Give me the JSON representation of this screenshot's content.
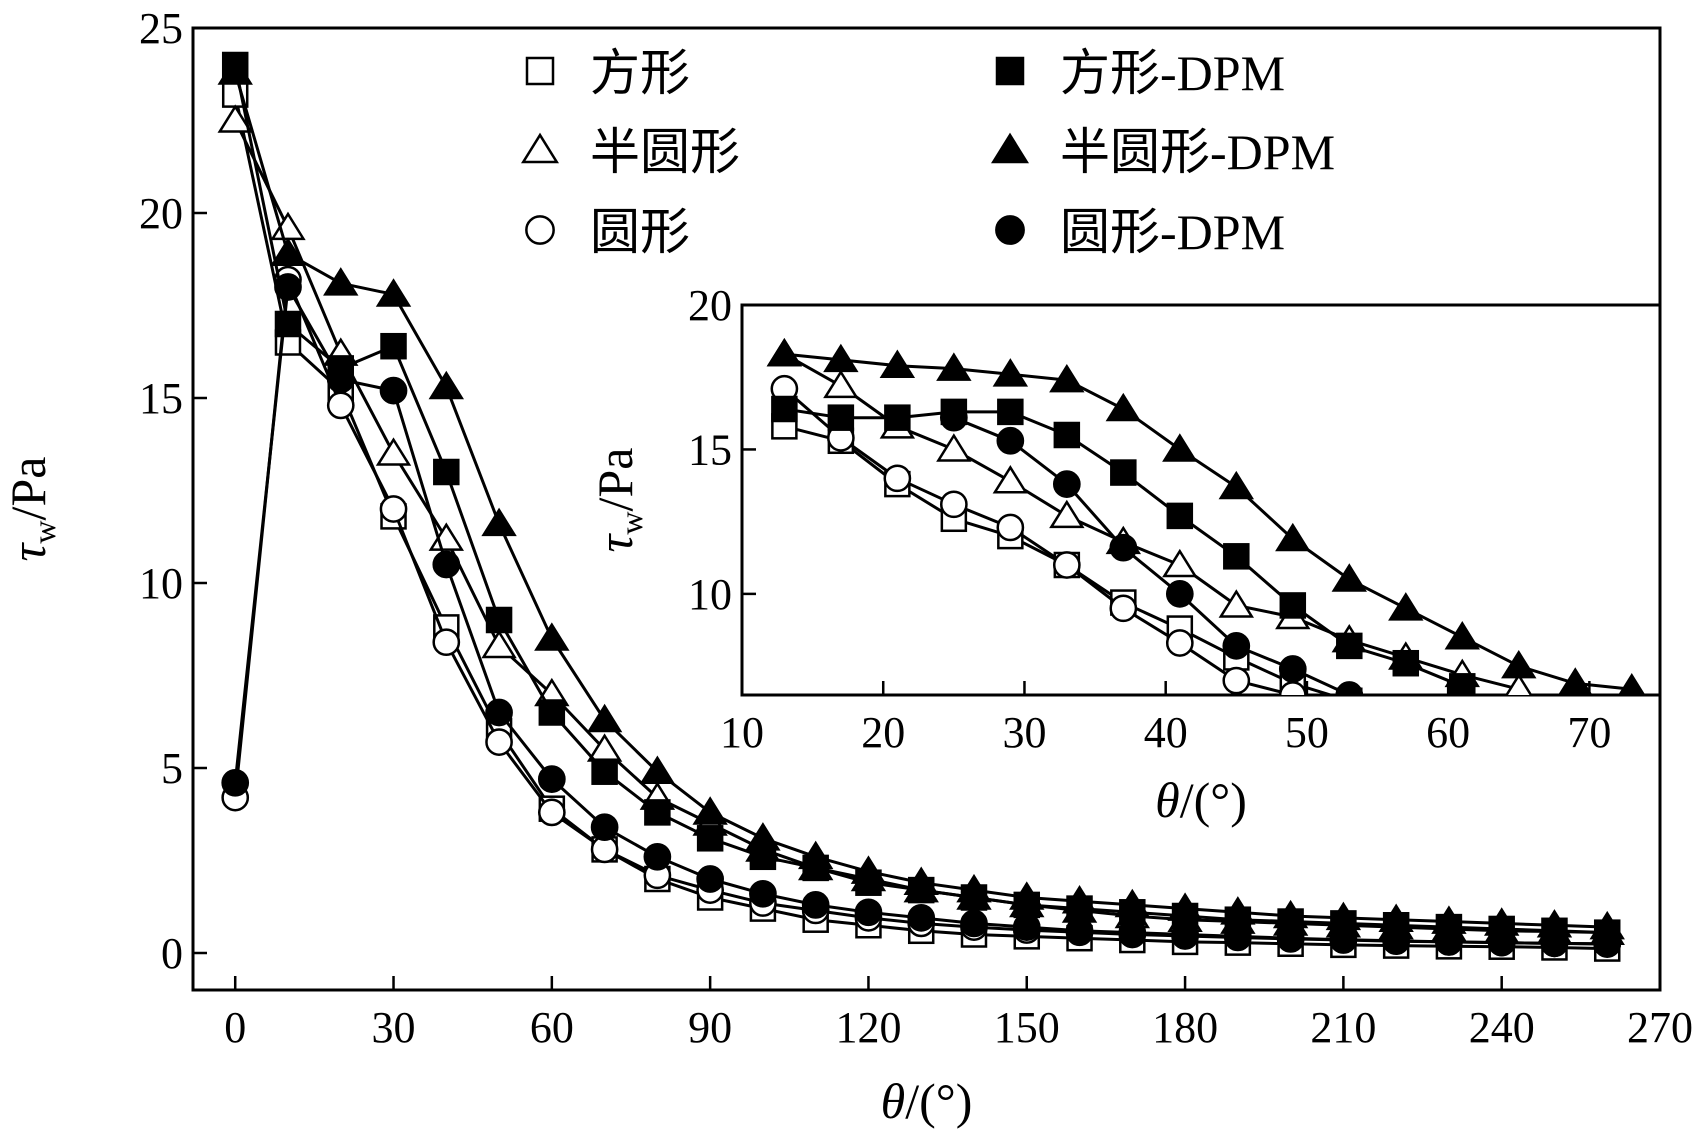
{
  "chart_data": {
    "type": "line",
    "colors": {
      "line": "#000000",
      "background": "#ffffff"
    },
    "main": {
      "xlabel_symbol": "θ",
      "xlabel_unit": "/(°)",
      "ylabel_symbol": "τ",
      "ylabel_sub": "w",
      "ylabel_unit": "/Pa",
      "xlim": [
        -8,
        270
      ],
      "ylim": [
        -1,
        25
      ],
      "xticks": [
        0,
        30,
        60,
        90,
        120,
        150,
        180,
        210,
        240,
        270
      ],
      "xtick_labels": [
        "0",
        "30",
        "60",
        "90",
        "120",
        "150",
        "180",
        "210",
        "240",
        "270"
      ],
      "yticks": [
        0,
        5,
        10,
        15,
        20,
        25
      ],
      "ytick_labels": [
        "0",
        "5",
        "10",
        "15",
        "20",
        "25"
      ]
    },
    "inset": {
      "xlabel_symbol": "θ",
      "xlabel_unit": "/(°)",
      "ylabel_symbol": "τ",
      "ylabel_sub": "w",
      "ylabel_unit": "/Pa",
      "xlim": [
        10,
        75
      ],
      "ylim": [
        6.5,
        20
      ],
      "xticks": [
        10,
        20,
        30,
        40,
        50,
        60,
        70
      ],
      "xtick_labels": [
        "10",
        "20",
        "30",
        "40",
        "50",
        "60",
        "70"
      ],
      "yticks": [
        10,
        15,
        20
      ],
      "ytick_labels": [
        "10",
        "15",
        "20"
      ]
    },
    "legend_position": "top",
    "series": [
      {
        "name": "方形",
        "marker": "square",
        "filled": false,
        "x": [
          0,
          10,
          20,
          30,
          40,
          50,
          60,
          70,
          80,
          90,
          100,
          110,
          120,
          130,
          140,
          150,
          160,
          170,
          180,
          190,
          200,
          210,
          220,
          230,
          240,
          250,
          260
        ],
        "y": [
          23.2,
          16.5,
          15.2,
          11.8,
          8.8,
          6.0,
          3.9,
          2.8,
          2.0,
          1.5,
          1.2,
          0.9,
          0.75,
          0.6,
          0.5,
          0.45,
          0.4,
          0.35,
          0.3,
          0.28,
          0.25,
          0.22,
          0.2,
          0.18,
          0.17,
          0.15,
          0.12
        ],
        "inset_x": [
          13,
          17,
          21,
          25,
          29,
          33,
          37,
          41,
          45,
          49,
          53
        ],
        "inset_y": [
          15.8,
          15.3,
          13.8,
          12.6,
          12.0,
          11.0,
          9.7,
          8.8,
          7.8,
          6.9,
          6.3
        ]
      },
      {
        "name": "半圆形",
        "marker": "triangle",
        "filled": false,
        "x": [
          0,
          10,
          20,
          30,
          40,
          50,
          60,
          70,
          80,
          90,
          100,
          110,
          120,
          130,
          140,
          150,
          160,
          170,
          180,
          190,
          200,
          210,
          220,
          230,
          240,
          250,
          260
        ],
        "y": [
          22.5,
          19.6,
          16.2,
          13.5,
          11.2,
          8.3,
          7.0,
          5.5,
          4.2,
          3.5,
          2.8,
          2.3,
          2.0,
          1.7,
          1.5,
          1.3,
          1.15,
          1.0,
          0.9,
          0.85,
          0.8,
          0.75,
          0.7,
          0.65,
          0.6,
          0.58,
          0.55
        ],
        "inset_x": [
          13,
          17,
          21,
          25,
          29,
          33,
          37,
          41,
          45,
          49,
          53,
          57,
          61,
          65
        ],
        "inset_y": [
          18.3,
          17.2,
          15.8,
          15.0,
          13.9,
          12.7,
          11.8,
          11.0,
          9.6,
          9.2,
          8.4,
          7.8,
          7.2,
          6.7
        ]
      },
      {
        "name": "圆形",
        "marker": "circle",
        "filled": false,
        "x": [
          0,
          10,
          20,
          30,
          40,
          50,
          60,
          70,
          80,
          90,
          100,
          110,
          120,
          130,
          140,
          150,
          160,
          170,
          180,
          190,
          200,
          210,
          220,
          230,
          240,
          250,
          260
        ],
        "y": [
          4.2,
          18.2,
          14.8,
          12.0,
          8.4,
          5.7,
          3.8,
          2.8,
          2.1,
          1.7,
          1.35,
          1.15,
          0.95,
          0.8,
          0.7,
          0.62,
          0.56,
          0.5,
          0.46,
          0.42,
          0.38,
          0.35,
          0.32,
          0.3,
          0.28,
          0.26,
          0.25
        ],
        "inset_x": [
          13,
          17,
          21,
          25,
          29,
          33,
          37,
          41,
          45,
          49
        ],
        "inset_y": [
          17.1,
          15.4,
          14.0,
          13.1,
          12.3,
          11.0,
          9.5,
          8.3,
          7.0,
          6.5
        ]
      },
      {
        "name": "方形-DPM",
        "marker": "square",
        "filled": true,
        "x": [
          0,
          10,
          20,
          30,
          40,
          50,
          60,
          70,
          80,
          90,
          100,
          110,
          120,
          130,
          140,
          150,
          160,
          170,
          180,
          190,
          200,
          210,
          220,
          230,
          240,
          250,
          260
        ],
        "y": [
          24.0,
          17.0,
          15.8,
          16.4,
          13.0,
          9.0,
          6.5,
          4.9,
          3.8,
          3.1,
          2.6,
          2.3,
          1.9,
          1.7,
          1.5,
          1.3,
          1.2,
          1.1,
          1.0,
          0.9,
          0.85,
          0.8,
          0.75,
          0.7,
          0.65,
          0.6,
          0.55
        ],
        "inset_x": [
          13,
          17,
          21,
          25,
          29,
          33,
          37,
          41,
          45,
          49,
          53,
          57,
          61
        ],
        "inset_y": [
          16.4,
          16.1,
          16.1,
          16.3,
          16.3,
          15.5,
          14.2,
          12.7,
          11.3,
          9.6,
          8.2,
          7.6,
          6.8
        ]
      },
      {
        "name": "半圆形-DPM",
        "marker": "triangle",
        "filled": true,
        "x": [
          0,
          10,
          20,
          30,
          40,
          50,
          60,
          70,
          80,
          90,
          100,
          110,
          120,
          130,
          140,
          150,
          160,
          170,
          180,
          190,
          200,
          210,
          220,
          230,
          240,
          250,
          260
        ],
        "y": [
          23.8,
          18.9,
          18.1,
          17.8,
          15.3,
          11.6,
          8.5,
          6.3,
          4.9,
          3.8,
          3.1,
          2.6,
          2.2,
          1.9,
          1.7,
          1.5,
          1.4,
          1.3,
          1.2,
          1.1,
          1.0,
          0.95,
          0.9,
          0.85,
          0.8,
          0.75,
          0.7
        ],
        "inset_x": [
          13,
          17,
          21,
          25,
          29,
          33,
          37,
          41,
          45,
          49,
          53,
          57,
          61,
          65,
          69,
          73
        ],
        "inset_y": [
          18.3,
          18.1,
          17.9,
          17.8,
          17.6,
          17.4,
          16.4,
          15.0,
          13.7,
          11.9,
          10.5,
          9.5,
          8.5,
          7.5,
          6.9,
          6.7
        ]
      },
      {
        "name": "圆形-DPM",
        "marker": "circle",
        "filled": true,
        "x": [
          0,
          10,
          20,
          30,
          40,
          50,
          60,
          70,
          80,
          90,
          100,
          110,
          120,
          130,
          140,
          150,
          160,
          170,
          180,
          190,
          200,
          210,
          220,
          230,
          240,
          250,
          260
        ],
        "y": [
          4.6,
          18.0,
          15.5,
          15.2,
          10.5,
          6.5,
          4.7,
          3.4,
          2.6,
          2.0,
          1.6,
          1.3,
          1.1,
          0.95,
          0.8,
          0.7,
          0.6,
          0.55,
          0.5,
          0.45,
          0.4,
          0.36,
          0.33,
          0.3,
          0.28,
          0.26,
          0.24
        ],
        "inset_x": [
          25,
          29,
          33,
          37,
          41,
          45,
          49,
          53
        ],
        "inset_y": [
          16.1,
          15.3,
          13.8,
          11.6,
          10.0,
          8.2,
          7.4,
          6.5
        ]
      }
    ]
  }
}
